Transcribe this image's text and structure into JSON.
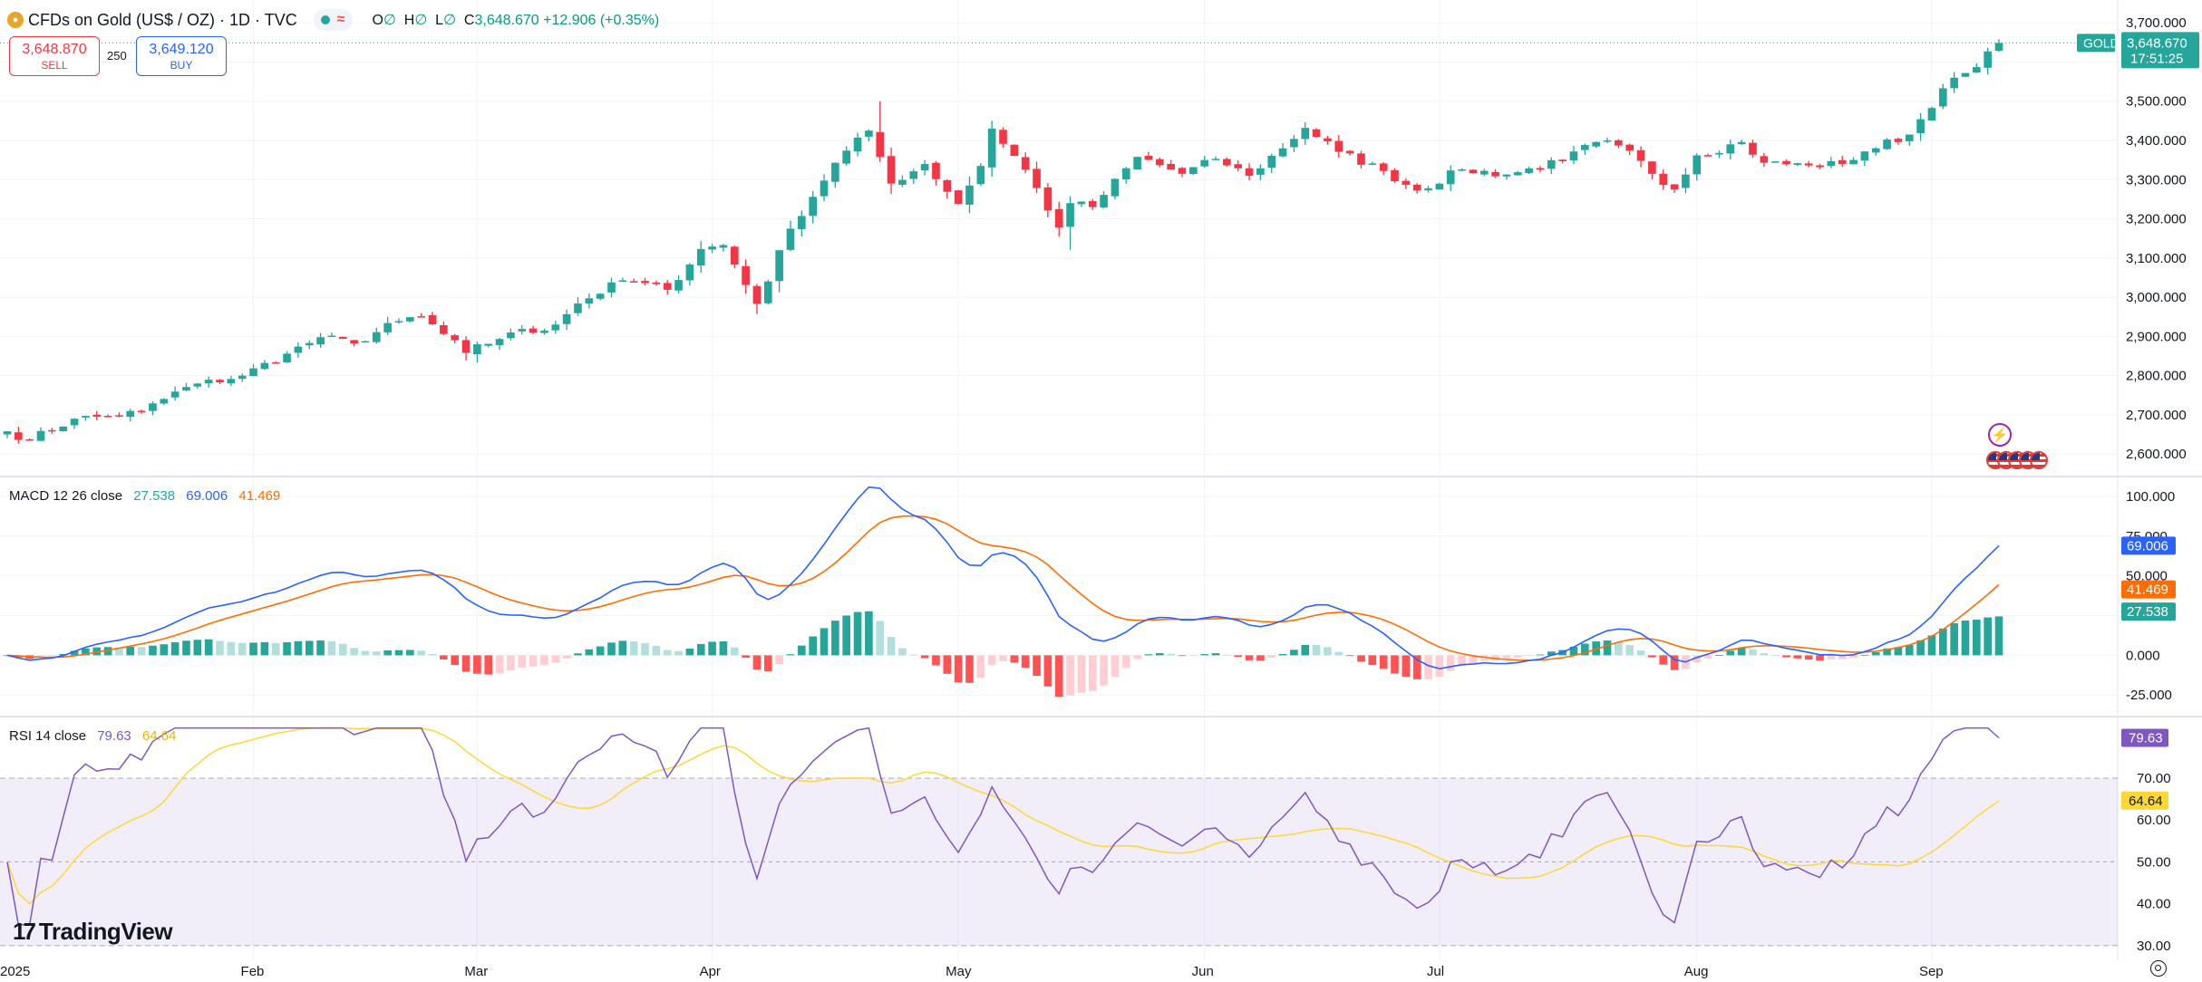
{
  "header": {
    "title": "CFDs on Gold (US$ / OZ) · 1D · TVC",
    "o_label": "O",
    "h_label": "H",
    "l_label": "L",
    "c_label": "C",
    "blank_marker": "∅",
    "close_value": "3,648.670",
    "change": "+12.906 (+0.35%)",
    "pill_wave": "≈"
  },
  "trade": {
    "sell_price": "3,648.870",
    "sell_label": "SELL",
    "spread": "250",
    "buy_price": "3,649.120",
    "buy_label": "BUY"
  },
  "price_tag": {
    "symbol": "GOLD",
    "price": "3,648.670",
    "countdown": "17:51:25"
  },
  "macd_legend": {
    "label": "MACD 12 26 close",
    "hist": "27.538",
    "macd": "69.006",
    "signal": "41.469"
  },
  "rsi_legend": {
    "label": "RSI 14 close",
    "rsi": "79.63",
    "ma": "64.64"
  },
  "brand": "TradingView",
  "colors": {
    "up": "#26a69a",
    "down": "#f23645",
    "macd_line": "#2962ff",
    "signal_line": "#ff6d00",
    "rsi_line": "#7e57c2",
    "rsi_ma": "#fdd835",
    "hist_pos_strong": "#26a69a",
    "hist_pos_weak": "#b2dfdb",
    "hist_neg_strong": "#ff5252",
    "hist_neg_weak": "#ffcdd2"
  },
  "chart_data": [
    {
      "type": "candlestick",
      "title": "CFDs on Gold (US$ / OZ) · 1D · TVC",
      "x": [
        "2025",
        "Feb",
        "Mar",
        "Apr",
        "May",
        "Jun",
        "Jul",
        "Aug",
        "Sep"
      ],
      "y_ticks": [
        "2,600.000",
        "2,700.000",
        "2,800.000",
        "2,900.000",
        "3,000.000",
        "3,100.000",
        "3,200.000",
        "3,300.000",
        "3,400.000",
        "3,500.000",
        "3,600.000",
        "3,700.000"
      ],
      "ylim": [
        2545,
        3712
      ],
      "last_price": 3648.67,
      "anchors": [
        {
          "date": "2025-01-02",
          "close": 2658
        },
        {
          "date": "2025-01-06",
          "close": 2636
        },
        {
          "date": "2025-01-10",
          "close": 2690
        },
        {
          "date": "2025-01-15",
          "close": 2697
        },
        {
          "date": "2025-01-20",
          "close": 2708
        },
        {
          "date": "2025-01-24",
          "close": 2771
        },
        {
          "date": "2025-01-31",
          "close": 2800
        },
        {
          "date": "2025-02-06",
          "close": 2856
        },
        {
          "date": "2025-02-11",
          "close": 2898
        },
        {
          "date": "2025-02-14",
          "close": 2882
        },
        {
          "date": "2025-02-20",
          "close": 2939
        },
        {
          "date": "2025-02-24",
          "close": 2951
        },
        {
          "date": "2025-02-28",
          "close": 2858
        },
        {
          "date": "2025-03-06",
          "close": 2910
        },
        {
          "date": "2025-03-11",
          "close": 2915
        },
        {
          "date": "2025-03-14",
          "close": 2984
        },
        {
          "date": "2025-03-20",
          "close": 3043
        },
        {
          "date": "2025-03-26",
          "close": 3019
        },
        {
          "date": "2025-03-31",
          "close": 3123
        },
        {
          "date": "2025-04-02",
          "close": 3133
        },
        {
          "date": "2025-04-07",
          "close": 2983
        },
        {
          "date": "2025-04-10",
          "close": 3175
        },
        {
          "date": "2025-04-16",
          "close": 3343
        },
        {
          "date": "2025-04-21",
          "close": 3425
        },
        {
          "date": "2025-04-23",
          "close": 3290
        },
        {
          "date": "2025-04-28",
          "close": 3340
        },
        {
          "date": "2025-05-01",
          "close": 3238
        },
        {
          "date": "2025-05-05",
          "close": 3335
        },
        {
          "date": "2025-05-06",
          "close": 3430
        },
        {
          "date": "2025-05-09",
          "close": 3325
        },
        {
          "date": "2025-05-14",
          "close": 3178
        },
        {
          "date": "2025-05-15",
          "close": 3240
        },
        {
          "date": "2025-05-19",
          "close": 3230
        },
        {
          "date": "2025-05-23",
          "close": 3358
        },
        {
          "date": "2025-05-29",
          "close": 3315
        },
        {
          "date": "2025-06-03",
          "close": 3353
        },
        {
          "date": "2025-06-06",
          "close": 3310
        },
        {
          "date": "2025-06-13",
          "close": 3432
        },
        {
          "date": "2025-06-18",
          "close": 3371
        },
        {
          "date": "2025-06-24",
          "close": 3322
        },
        {
          "date": "2025-06-27",
          "close": 3272
        },
        {
          "date": "2025-07-03",
          "close": 3326
        },
        {
          "date": "2025-07-09",
          "close": 3313
        },
        {
          "date": "2025-07-16",
          "close": 3347
        },
        {
          "date": "2025-07-21",
          "close": 3396
        },
        {
          "date": "2025-07-23",
          "close": 3387
        },
        {
          "date": "2025-07-30",
          "close": 3275
        },
        {
          "date": "2025-08-01",
          "close": 3362
        },
        {
          "date": "2025-08-07",
          "close": 3396
        },
        {
          "date": "2025-08-11",
          "close": 3343
        },
        {
          "date": "2025-08-15",
          "close": 3336
        },
        {
          "date": "2025-08-20",
          "close": 3340
        },
        {
          "date": "2025-08-22",
          "close": 3372
        },
        {
          "date": "2025-08-28",
          "close": 3415
        },
        {
          "date": "2025-09-02",
          "close": 3533
        },
        {
          "date": "2025-09-05",
          "close": 3587
        },
        {
          "date": "2025-09-09",
          "close": 3648.67
        }
      ]
    },
    {
      "type": "line",
      "title": "MACD 12 26 close",
      "series": [
        {
          "name": "MACD"
        },
        {
          "name": "Signal"
        },
        {
          "name": "Histogram"
        }
      ],
      "y_ticks": [
        "-25.000",
        "0.000",
        "25.000",
        "50.000",
        "75.000",
        "100.000"
      ],
      "ylim": [
        -38,
        112
      ],
      "last": {
        "macd": 69.006,
        "signal": 41.469,
        "hist": 27.538
      }
    },
    {
      "type": "line",
      "title": "RSI 14 close",
      "series": [
        {
          "name": "RSI"
        },
        {
          "name": "RSI-based MA"
        }
      ],
      "y_ticks": [
        "30.00",
        "40.00",
        "50.00",
        "60.00",
        "70.00"
      ],
      "ylim": [
        26.5,
        84.5
      ],
      "levels": [
        70,
        50,
        30
      ],
      "last": {
        "rsi": 79.63,
        "ma": 64.64
      }
    }
  ]
}
